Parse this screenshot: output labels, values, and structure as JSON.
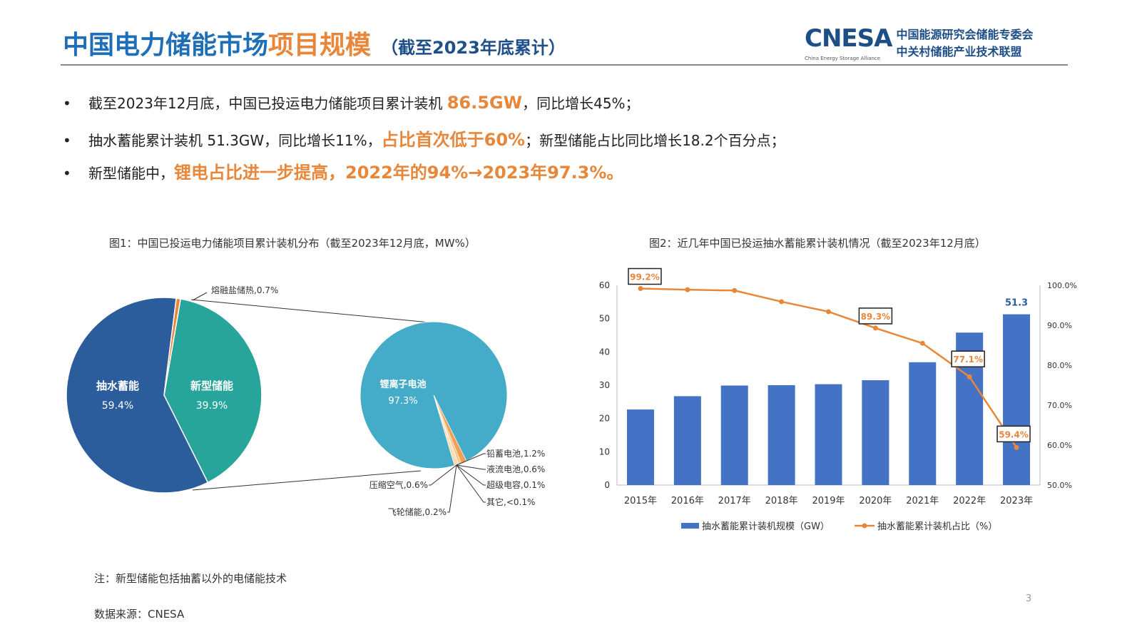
{
  "header": {
    "title_part1": "中国电力储能市场",
    "title_part2": "项目规模",
    "subtitle": "（截至2023年底累计）",
    "logo": {
      "name": "CNESA",
      "tagline": "China Energy Storage Alliance",
      "line1": "中国能源研究会储能专委会",
      "line2": "中关村储能产业技术联盟"
    }
  },
  "bullets": [
    {
      "a": "截至2023年12月底，中国已投运电力储能项目累计装机 ",
      "em": "86.5GW",
      "b": "，同比增长45%；"
    },
    {
      "a": "抽水蓄能累计装机 51.3GW，同比增长11%，",
      "em": "占比首次低于60%",
      "b": "；新型储能占比同比增长18.2个百分点；"
    },
    {
      "a": "新型储能中，",
      "em": "锂电占比进一步提高，2022年的94%→2023年97.3%。",
      "b": ""
    }
  ],
  "colors": {
    "title_blue": "#1f6fb8",
    "accent_orange": "#e8873a",
    "pumped": "#2b5c9b",
    "new": "#27a59a",
    "lithium": "#44abc8",
    "bar": "#4472c4",
    "line": "#e8873a"
  },
  "chart_data": [
    {
      "type": "pie",
      "title": "图1：中国已投运电力储能项目累计装机分布（截至2023年12月底，MW%）",
      "slices": [
        {
          "label": "抽水蓄能",
          "value": 59.4,
          "display": "59.4%"
        },
        {
          "label": "新型储能",
          "value": 39.9,
          "display": "39.9%"
        },
        {
          "label": "熔融盐储热",
          "value": 0.7,
          "display": "熔融盐储热,0.7%"
        }
      ],
      "sub_pie": {
        "slices": [
          {
            "label": "锂离子电池",
            "value": 97.3,
            "display": "97.3%"
          },
          {
            "label": "铅蓄电池",
            "value": 1.2,
            "display": "铅蓄电池,1.2%"
          },
          {
            "label": "液流电池",
            "value": 0.6,
            "display": "液流电池,0.6%"
          },
          {
            "label": "超级电容",
            "value": 0.1,
            "display": "超级电容,0.1%"
          },
          {
            "label": "其它",
            "value": 0.05,
            "display": "其它,<0.1%"
          },
          {
            "label": "飞轮储能",
            "value": 0.2,
            "display": "飞轮储能,0.2%"
          },
          {
            "label": "压缩空气",
            "value": 0.6,
            "display": "压缩空气,0.6%"
          }
        ]
      }
    },
    {
      "type": "bar+line",
      "title": "图2：近几年中国已投运抽水蓄能累计装机情况（截至2023年12月底）",
      "categories": [
        "2015年",
        "2016年",
        "2017年",
        "2018年",
        "2019年",
        "2020年",
        "2021年",
        "2022年",
        "2023年"
      ],
      "series": [
        {
          "name": "抽水蓄能累计装机规模（GW）",
          "type": "bar",
          "axis": "left",
          "values": [
            22.7,
            26.7,
            29.9,
            30.0,
            30.3,
            31.5,
            36.9,
            45.8,
            51.3
          ]
        },
        {
          "name": "抽水蓄能累计装机占比（%）",
          "type": "line",
          "axis": "right",
          "values": [
            99.2,
            98.9,
            98.7,
            95.9,
            93.4,
            89.3,
            85.5,
            77.1,
            59.4
          ]
        }
      ],
      "data_labels": {
        "bar": {
          "8": "51.3"
        },
        "line": {
          "0": "99.2%",
          "5": "89.3%",
          "7": "77.1%",
          "8": "59.4%"
        }
      },
      "ylim_left": [
        0,
        60
      ],
      "yticks_left": [
        "0",
        "10",
        "20",
        "30",
        "40",
        "50",
        "60"
      ],
      "ylim_right": [
        50,
        100
      ],
      "yticks_right": [
        "50.0%",
        "60.0%",
        "70.0%",
        "80.0%",
        "90.0%",
        "100.0%"
      ],
      "legend": "bottom",
      "grid": false
    }
  ],
  "footer": {
    "note": "注：新型储能包括抽蓄以外的电储能技术",
    "source": "数据来源：CNESA",
    "page": "3"
  }
}
